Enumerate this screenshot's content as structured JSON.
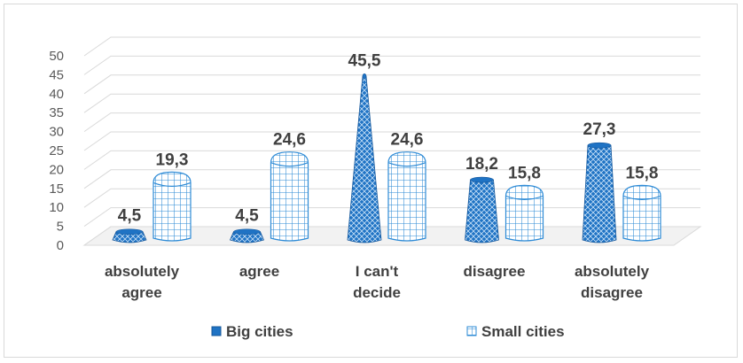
{
  "chart_data": {
    "type": "bar",
    "categories": [
      [
        "absolutely",
        "agree"
      ],
      [
        "agree"
      ],
      [
        "I can't",
        "decide"
      ],
      [
        "disagree"
      ],
      [
        "absolutely",
        "disagree"
      ]
    ],
    "series": [
      {
        "name": "Big cities",
        "values": [
          4.5,
          4.5,
          45.5,
          18.2,
          27.3
        ],
        "labels": [
          "4,5",
          "4,5",
          "45,5",
          "18,2",
          "27,3"
        ],
        "color": "#1f73c4"
      },
      {
        "name": "Small cities",
        "values": [
          19.3,
          24.6,
          24.6,
          15.8,
          15.8
        ],
        "labels": [
          "19,3",
          "24,6",
          "24,6",
          "15,8",
          "15,8"
        ],
        "color": "#2e8bd6"
      }
    ],
    "ylim": [
      0,
      50
    ],
    "yticks": [
      0,
      5,
      10,
      15,
      20,
      25,
      30,
      35,
      40,
      45,
      50
    ],
    "grid": true,
    "legend_position": "bottom"
  }
}
